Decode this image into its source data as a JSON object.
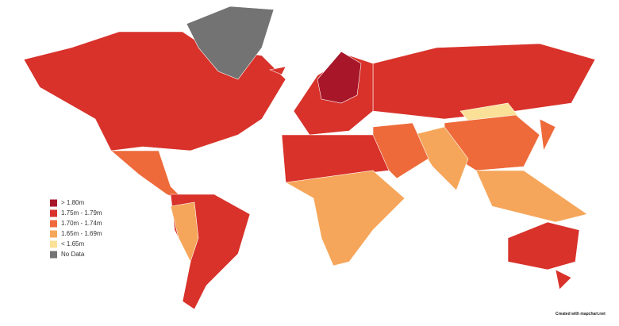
{
  "legend": {
    "items": [
      {
        "label": "> 1.80m",
        "color": "#a8162a"
      },
      {
        "label": "1.75m - 1.79m",
        "color": "#d8322a"
      },
      {
        "label": "1.70m - 1.74m",
        "color": "#ee6a3a"
      },
      {
        "label": "1.65m - 1.69m",
        "color": "#f6a65a"
      },
      {
        "label": "< 1.65m",
        "color": "#fbe097"
      },
      {
        "label": "No Data",
        "color": "#737373"
      }
    ]
  },
  "credit": "Created with mapchart.net"
}
